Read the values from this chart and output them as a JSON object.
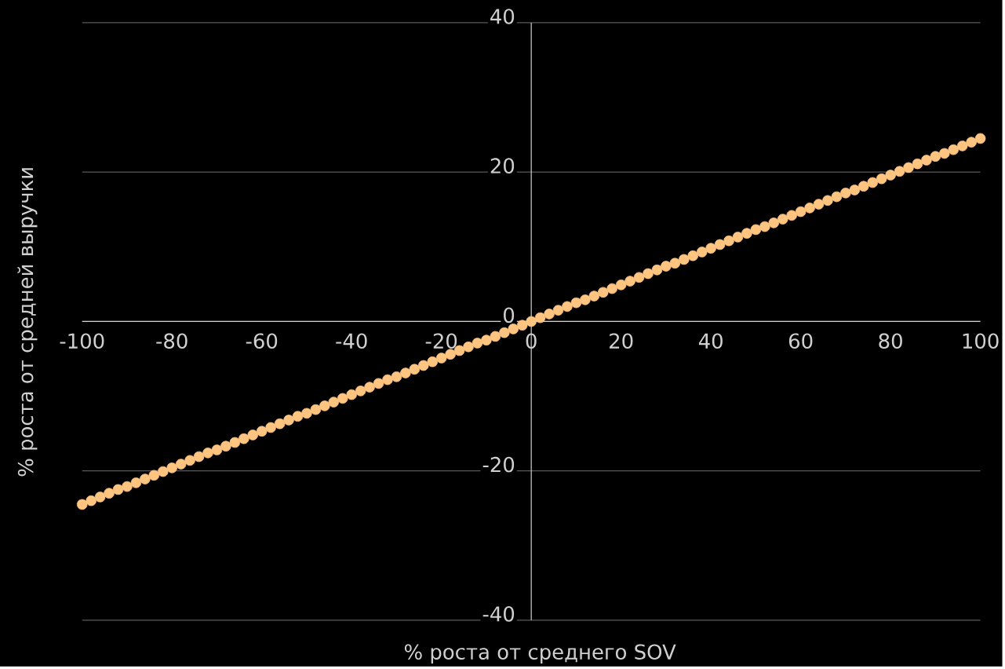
{
  "chart_data": {
    "type": "scatter",
    "xlabel": "% роста от среднего SOV",
    "ylabel": "% роста от средней выручки",
    "x": [
      -100,
      -98,
      -96,
      -94,
      -92,
      -90,
      -88,
      -86,
      -84,
      -82,
      -80,
      -78,
      -76,
      -74,
      -72,
      -70,
      -68,
      -66,
      -64,
      -62,
      -60,
      -58,
      -56,
      -54,
      -52,
      -50,
      -48,
      -46,
      -44,
      -42,
      -40,
      -38,
      -36,
      -34,
      -32,
      -30,
      -28,
      -26,
      -24,
      -22,
      -20,
      -18,
      -16,
      -14,
      -12,
      -10,
      -8,
      -6,
      -4,
      -2,
      0,
      2,
      4,
      6,
      8,
      10,
      12,
      14,
      16,
      18,
      20,
      22,
      24,
      26,
      28,
      30,
      32,
      34,
      36,
      38,
      40,
      42,
      44,
      46,
      48,
      50,
      52,
      54,
      56,
      58,
      60,
      62,
      64,
      66,
      68,
      70,
      72,
      74,
      76,
      78,
      80,
      82,
      84,
      86,
      88,
      90,
      92,
      94,
      96,
      98,
      100
    ],
    "values": [
      -24.5,
      -24.0,
      -23.5,
      -23.0,
      -22.5,
      -22.1,
      -21.6,
      -21.1,
      -20.6,
      -20.1,
      -19.6,
      -19.1,
      -18.6,
      -18.1,
      -17.6,
      -17.2,
      -16.7,
      -16.2,
      -15.7,
      -15.2,
      -14.7,
      -14.2,
      -13.7,
      -13.2,
      -12.7,
      -12.3,
      -11.8,
      -11.3,
      -10.8,
      -10.3,
      -9.8,
      -9.3,
      -8.8,
      -8.3,
      -7.8,
      -7.4,
      -6.9,
      -6.4,
      -5.9,
      -5.4,
      -4.9,
      -4.4,
      -3.9,
      -3.4,
      -2.9,
      -2.5,
      -2.0,
      -1.5,
      -1.0,
      -0.5,
      0,
      0.5,
      1.0,
      1.5,
      2.0,
      2.5,
      2.9,
      3.4,
      3.9,
      4.4,
      4.9,
      5.4,
      5.9,
      6.4,
      6.9,
      7.4,
      7.8,
      8.3,
      8.8,
      9.3,
      9.8,
      10.3,
      10.8,
      11.3,
      11.8,
      12.3,
      12.7,
      13.2,
      13.7,
      14.2,
      14.7,
      15.2,
      15.7,
      16.2,
      16.7,
      17.2,
      17.6,
      18.1,
      18.6,
      19.1,
      19.6,
      20.1,
      20.6,
      21.1,
      21.6,
      22.1,
      22.5,
      23.0,
      23.5,
      24.0,
      24.5
    ],
    "color": "#ffc47f",
    "marker": "circle",
    "grid": "y",
    "xlim": [
      -100,
      100
    ],
    "ylim": [
      -40,
      40
    ],
    "xticks": [
      -100,
      -80,
      -60,
      -40,
      -20,
      0,
      20,
      40,
      60,
      80,
      100
    ],
    "yticks": [
      -40,
      -20,
      0,
      20,
      40
    ]
  }
}
